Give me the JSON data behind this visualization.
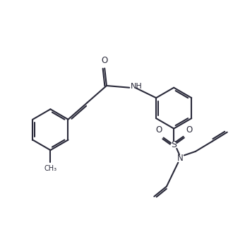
{
  "line_color": "#2a2a3a",
  "bg_color": "#ffffff",
  "line_width": 1.5,
  "figsize": [
    3.47,
    3.22
  ],
  "dpi": 100,
  "xlim": [
    0,
    10
  ],
  "ylim": [
    0,
    9.3
  ]
}
